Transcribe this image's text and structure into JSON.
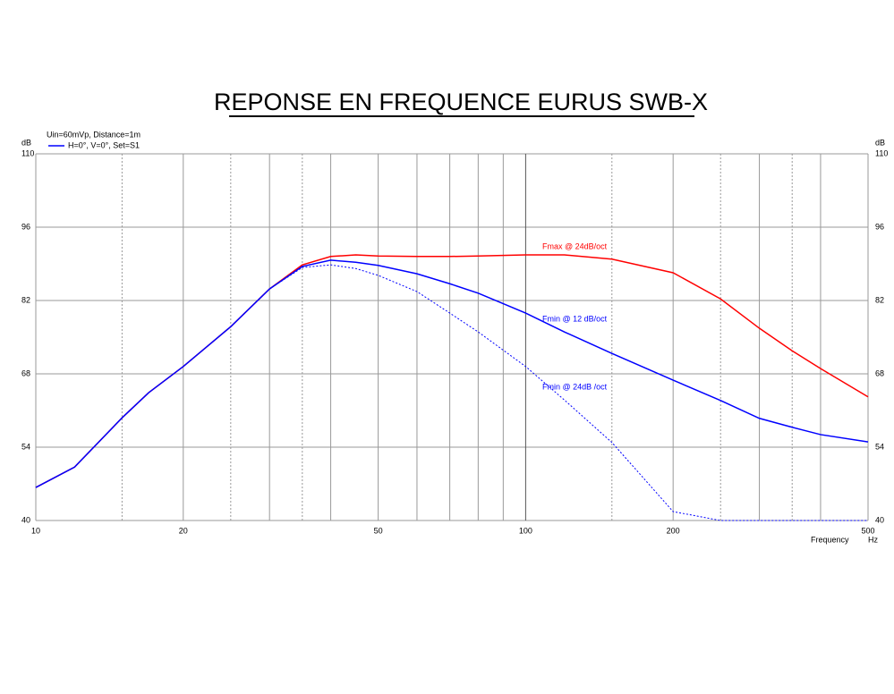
{
  "chart_data": {
    "type": "line",
    "title": "REPONSE EN FREQUENCE EURUS SWB-X",
    "legend_title": "Uin=60mVp, Distance=1m",
    "legend_entry": "H=0°, V=0°, Set=S1",
    "legend_color": "#0000ff",
    "y_label_left": "dB",
    "y_label_right": "dB",
    "x_label": "Frequency",
    "x_unit": "Hz",
    "log_x": true,
    "xlim": [
      10,
      500
    ],
    "ylim": [
      40,
      110
    ],
    "xticks": [
      10,
      20,
      50,
      100,
      200,
      500
    ],
    "x_minor_grid": [
      30,
      40,
      60,
      70,
      80,
      90,
      300,
      400
    ],
    "x_dotted_grid": [
      15,
      25,
      35,
      150,
      250,
      350
    ],
    "yticks": [
      40,
      54,
      68,
      82,
      96,
      110
    ],
    "grid": true,
    "x": [
      10,
      12,
      15,
      17,
      20,
      25,
      30,
      35,
      40,
      45,
      50,
      60,
      70,
      80,
      100,
      120,
      150,
      200,
      250,
      300,
      350,
      400,
      500
    ],
    "series": [
      {
        "name": "Fmax @ 24dB/oct",
        "color": "#ff0000",
        "style": "solid",
        "values": [
          46.3,
          50.2,
          59.6,
          64.4,
          69.4,
          77.0,
          84.2,
          88.8,
          90.4,
          90.7,
          90.5,
          90.4,
          90.4,
          90.5,
          90.7,
          90.7,
          89.9,
          87.3,
          82.3,
          76.7,
          72.4,
          69.0,
          63.6
        ]
      },
      {
        "name": "Fmin @ 12 dB/oct",
        "color": "#0000ff",
        "style": "solid",
        "values": [
          46.3,
          50.2,
          59.6,
          64.4,
          69.4,
          77.0,
          84.2,
          88.5,
          89.7,
          89.3,
          88.7,
          87.1,
          85.2,
          83.4,
          79.6,
          76.0,
          71.9,
          66.8,
          62.9,
          59.5,
          57.8,
          56.4,
          55.0
        ]
      },
      {
        "name": "Fmin @ 24dB /oct",
        "color": "#0000ff",
        "style": "dotted",
        "values": [
          46.3,
          50.2,
          59.6,
          64.4,
          69.4,
          77.0,
          84.2,
          88.3,
          88.8,
          88.1,
          86.8,
          83.7,
          79.6,
          76.0,
          69.4,
          63.0,
          54.9,
          41.7,
          40,
          40,
          40,
          40,
          40
        ]
      }
    ]
  }
}
